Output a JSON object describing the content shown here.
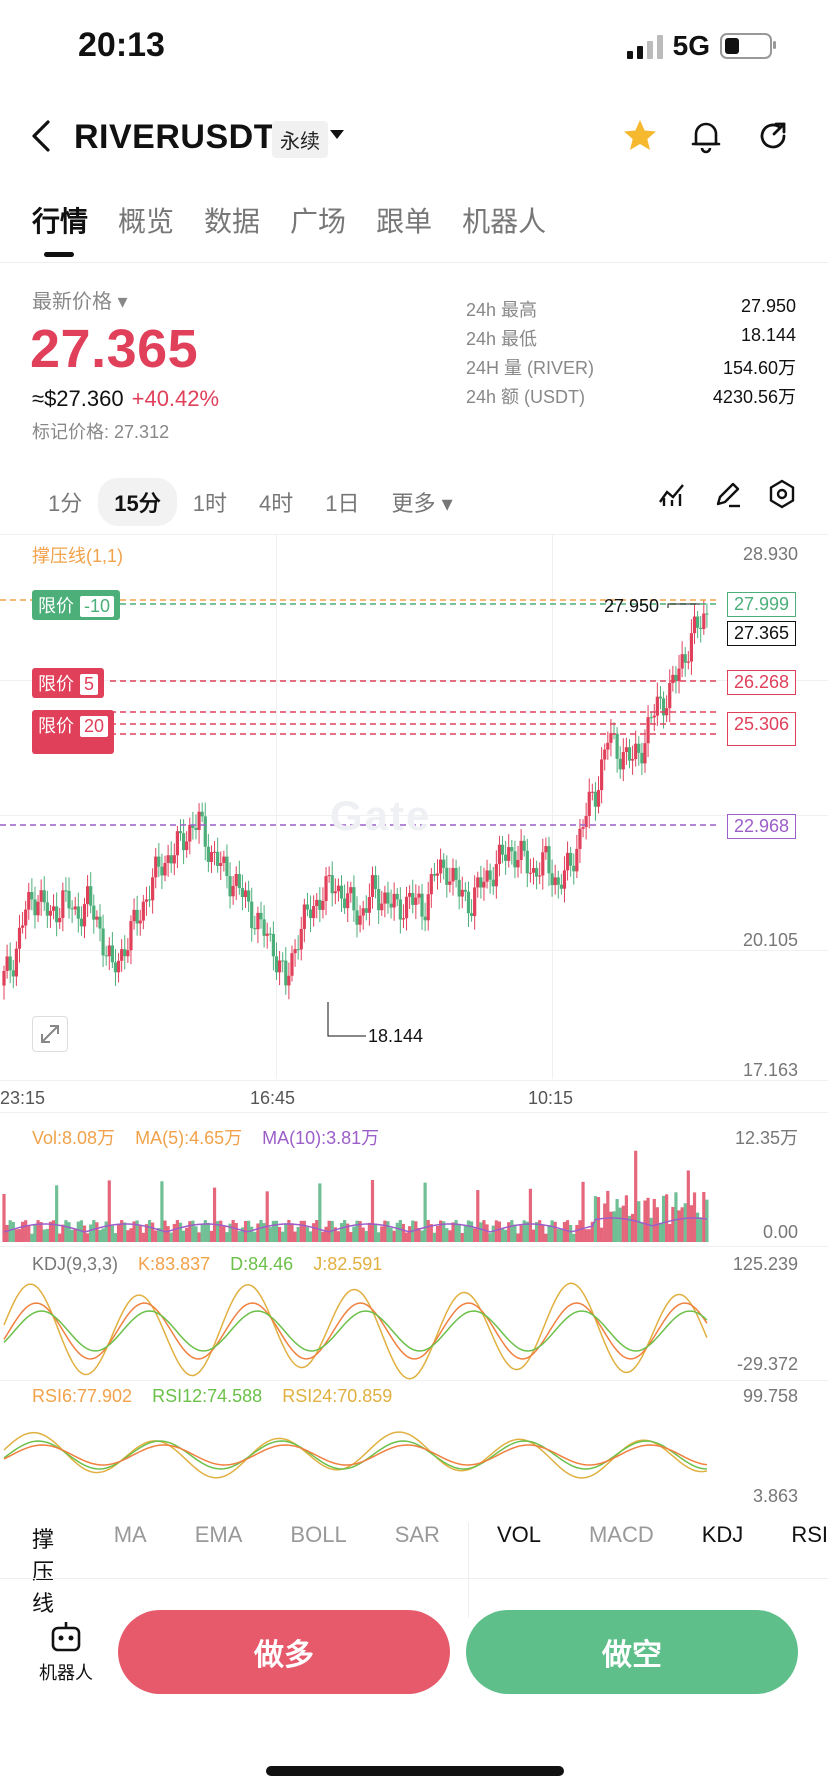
{
  "status": {
    "time": "20:13",
    "network": "5G"
  },
  "header": {
    "title": "RIVERUSDT",
    "contract_type": "永续"
  },
  "tabs": [
    "行情",
    "概览",
    "数据",
    "广场",
    "跟单",
    "机器人"
  ],
  "ticker": {
    "last_label": "最新价格",
    "last_price": "27.365",
    "usd_price": "≈$27.360",
    "change": "+40.42%",
    "mark_label": "标记价格:",
    "mark_price": "27.312",
    "stats": [
      {
        "label": "24h  最高",
        "value": "27.950"
      },
      {
        "label": "24h  最低",
        "value": "18.144"
      },
      {
        "label": "24H  量 (RIVER)",
        "value": "154.60万"
      },
      {
        "label": "24h  额 (USDT)",
        "value": "4230.56万"
      }
    ]
  },
  "timeframes": [
    "1分",
    "15分",
    "1时",
    "4时",
    "1日",
    "更多"
  ],
  "chart": {
    "indicator_label": "撑压线(1,1)",
    "y_labels": [
      "28.930",
      "20.105",
      "17.163"
    ],
    "x_labels": [
      "23:15",
      "16:45",
      "10:15"
    ],
    "high_label": "27.950",
    "low_label": "18.144",
    "order_tags": [
      {
        "label": "限价",
        "qty": "-10",
        "price": "27.999",
        "color": "#4caf7a"
      },
      {
        "label": "限价",
        "qty": "5",
        "price": "26.268",
        "color": "#e0405a"
      },
      {
        "label": "限价",
        "qty": "20",
        "price": "25.306",
        "color": "#e0405a"
      }
    ],
    "current_price": "27.365",
    "purple_line": "22.968",
    "colors": {
      "up": "#e0405a",
      "down": "#4caf7a",
      "purple": "#9c5ec9",
      "orange": "#f2a24a"
    }
  },
  "chart_data": {
    "type": "candlestick",
    "y_axis": [
      17.163,
      28.93
    ],
    "x_ticks": [
      "23:15",
      "16:45",
      "10:15"
    ],
    "high": 27.95,
    "low": 18.144,
    "last": 27.365,
    "close_trend": [
      18.9,
      19.5,
      20.6,
      21.0,
      20.4,
      20.9,
      20.5,
      20.8,
      20.2,
      19.2,
      19.8,
      20.4,
      21.1,
      21.7,
      21.9,
      22.4,
      22.6,
      21.9,
      21.5,
      21.2,
      20.7,
      20.2,
      19.8,
      18.9,
      20.1,
      20.6,
      21.0,
      21.2,
      20.8,
      20.5,
      21.0,
      20.9,
      20.6,
      20.9,
      20.6,
      21.4,
      21.6,
      21.0,
      20.8,
      21.3,
      21.6,
      22.0,
      21.8,
      21.5,
      21.7,
      21.2,
      21.6,
      22.6,
      23.3,
      24.5,
      24.2,
      24.0,
      24.5,
      25.3,
      25.5,
      26.3,
      26.9,
      27.4
    ]
  },
  "volume": {
    "vol": "Vol:8.08万",
    "ma5": "MA(5):4.65万",
    "ma10": "MA(10):3.81万",
    "max": "12.35万",
    "min": "0.00"
  },
  "kdj": {
    "title": "KDJ(9,3,3)",
    "k": "K:83.837",
    "d": "D:84.46",
    "j": "J:82.591",
    "max": "125.239",
    "min": "-29.372"
  },
  "rsi": {
    "r6": "RSI6:77.902",
    "r12": "RSI12:74.588",
    "r24": "RSI24:70.859",
    "max": "99.758",
    "min": "3.863"
  },
  "indicator_tabs": [
    "撑压线",
    "MA",
    "EMA",
    "BOLL",
    "SAR",
    "VOL",
    "MACD",
    "KDJ",
    "RSI"
  ],
  "bottom": {
    "robot": "机器人",
    "long": "做多",
    "short": "做空"
  }
}
